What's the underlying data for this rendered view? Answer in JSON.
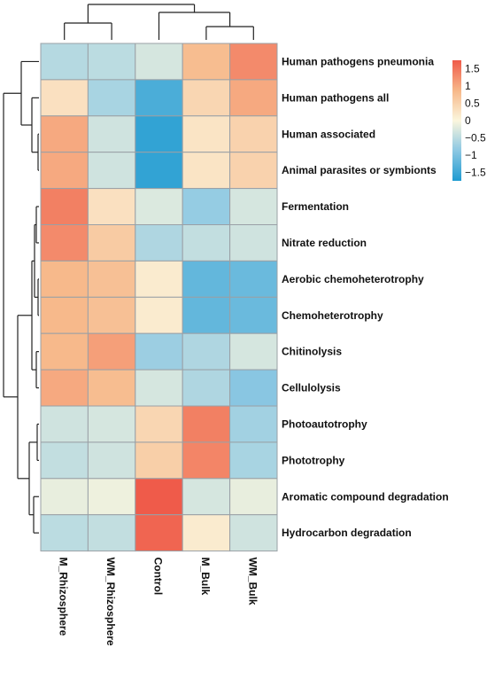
{
  "chart_data": {
    "type": "heatmap",
    "title": "",
    "xlabel": "",
    "ylabel": "",
    "columns": [
      "M_Rhizosphere",
      "WM_Rhizosphere",
      "Control",
      "M_Bulk",
      "WM_Bulk"
    ],
    "rows": [
      "Human pathogens pneumonia",
      "Human pathogens all",
      "Human associated",
      "Animal parasites or symbionts",
      "Fermentation",
      "Nitrate reduction",
      "Aerobic chemoheterotrophy",
      "Chemoheterotrophy",
      "Chitinolysis",
      "Cellulolysis",
      "Photoautotrophy",
      "Phototrophy",
      "Aromatic compound degradation",
      "Hydrocarbon degradation"
    ],
    "values": [
      [
        -0.55,
        -0.5,
        -0.3,
        0.8,
        1.3
      ],
      [
        0.3,
        -0.65,
        -1.4,
        0.45,
        1.0
      ],
      [
        1.0,
        -0.35,
        -1.6,
        0.25,
        0.5
      ],
      [
        1.0,
        -0.35,
        -1.6,
        0.25,
        0.5
      ],
      [
        1.4,
        0.3,
        -0.25,
        -0.8,
        -0.3
      ],
      [
        1.3,
        0.6,
        -0.6,
        -0.45,
        -0.35
      ],
      [
        0.85,
        0.75,
        0.15,
        -1.2,
        -1.15
      ],
      [
        0.85,
        0.75,
        0.15,
        -1.2,
        -1.15
      ],
      [
        0.85,
        1.1,
        -0.75,
        -0.6,
        -0.3
      ],
      [
        1.0,
        0.8,
        -0.3,
        -0.6,
        -0.9
      ],
      [
        -0.35,
        -0.3,
        0.45,
        1.4,
        -0.7
      ],
      [
        -0.45,
        -0.35,
        0.55,
        1.35,
        -0.65
      ],
      [
        -0.15,
        -0.1,
        1.75,
        -0.3,
        -0.15
      ],
      [
        -0.5,
        -0.45,
        1.65,
        0.15,
        -0.35
      ]
    ],
    "legend": {
      "ticks": [
        {
          "value": 1.5,
          "label": "1.5"
        },
        {
          "value": 1,
          "label": "1"
        },
        {
          "value": 0.5,
          "label": "0.5"
        },
        {
          "value": 0,
          "label": "0"
        },
        {
          "value": -0.5,
          "label": "−0.5"
        },
        {
          "value": -1,
          "label": "−1"
        },
        {
          "value": -1.5,
          "label": "−1.5"
        }
      ],
      "range": [
        -1.75,
        1.75
      ],
      "placement": "top-right"
    },
    "colors": {
      "low": "#1f9bd1",
      "mid_low": "#8fc9e3",
      "mid": "#fbf6dd",
      "mid_high": "#f7b98b",
      "high": "#ef5b4a"
    },
    "row_dendrogram": true,
    "column_dendrogram": true
  }
}
